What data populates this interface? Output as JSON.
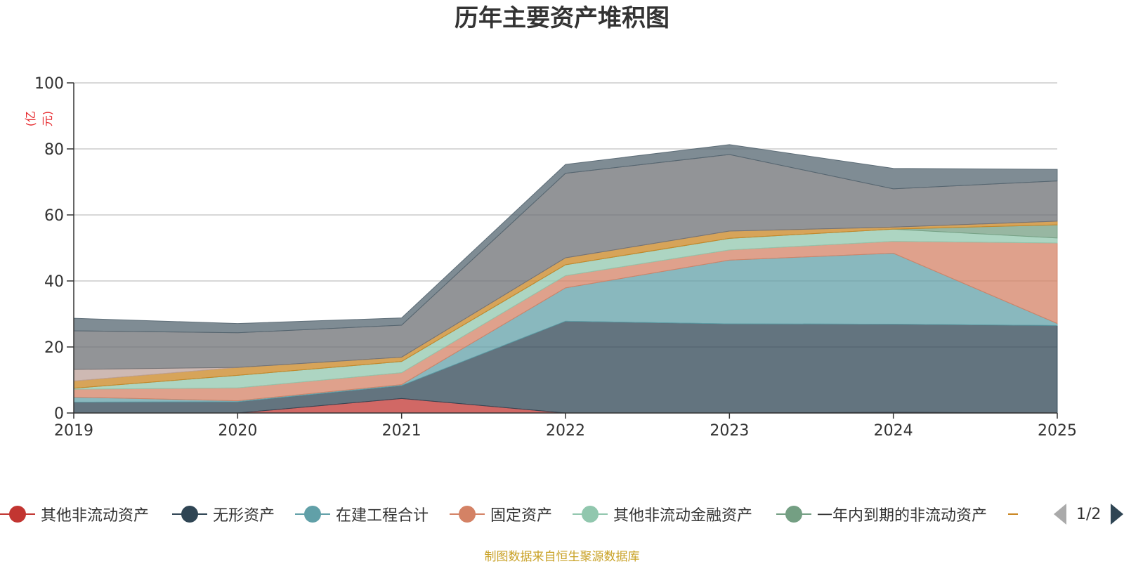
{
  "title": "历年主要资产堆积图",
  "y_unit": "(亿元)",
  "footer": "制图数据来自恒生聚源数据库",
  "pager": {
    "text": "1/2"
  },
  "legend": [
    {
      "name": "其他非流动资产",
      "color": "#c23531"
    },
    {
      "name": "无形资产",
      "color": "#2f4554"
    },
    {
      "name": "在建工程合计",
      "color": "#61a0a8"
    },
    {
      "name": "固定资产",
      "color": "#d48265"
    },
    {
      "name": "其他非流动金融资产",
      "color": "#91c7ae"
    },
    {
      "name": "一年内到期的非流动资产",
      "color": "#749f83"
    },
    {
      "name": "",
      "color": "#ca8622"
    }
  ],
  "chart_data": {
    "type": "area",
    "stacked": true,
    "title": "历年主要资产堆积图",
    "ylabel": "(亿元)",
    "x": [
      "2019",
      "2020",
      "2021",
      "2022",
      "2023",
      "2024",
      "2025"
    ],
    "ylim": [
      0,
      100
    ],
    "yticks": [
      0,
      20,
      40,
      60,
      80,
      100
    ],
    "grid": true,
    "series": [
      {
        "name": "其他非流动资产",
        "color": "#c23531",
        "values": [
          0,
          0,
          4.4,
          0,
          0,
          0.2,
          0
        ]
      },
      {
        "name": "无形资产",
        "color": "#2f4554",
        "values": [
          3.3,
          3.4,
          3.9,
          27.8,
          27.0,
          26.7,
          26.5
        ]
      },
      {
        "name": "在建工程合计",
        "color": "#61a0a8",
        "values": [
          1.5,
          0.3,
          0.3,
          10.1,
          19.3,
          21.5,
          0.6
        ]
      },
      {
        "name": "固定资产",
        "color": "#d48265",
        "values": [
          2.4,
          3.9,
          3.6,
          3.7,
          3.1,
          3.6,
          24.4
        ]
      },
      {
        "name": "其他非流动金融资产",
        "color": "#91c7ae",
        "values": [
          0.3,
          3.8,
          3.4,
          3.3,
          3.5,
          3.7,
          1.5
        ]
      },
      {
        "name": "一年内到期的非流动资产",
        "color": "#749f83",
        "values": [
          0,
          0,
          0,
          0,
          0,
          0,
          4.0
        ]
      },
      {
        "name": "",
        "color": "#ca8622",
        "values": [
          2.2,
          2.4,
          1.3,
          2.1,
          2.2,
          0.6,
          1.1
        ]
      },
      {
        "name": "",
        "color": "#bda29a",
        "values": [
          3.5,
          0,
          0,
          0,
          0,
          0,
          0
        ]
      },
      {
        "name": "",
        "color": "#6e7074",
        "values": [
          11.7,
          10.5,
          9.7,
          25.6,
          23.2,
          11.6,
          12.2
        ]
      },
      {
        "name": "",
        "color": "#546570",
        "values": [
          3.8,
          2.8,
          2.2,
          2.7,
          3.0,
          6.2,
          3.5
        ]
      }
    ]
  }
}
